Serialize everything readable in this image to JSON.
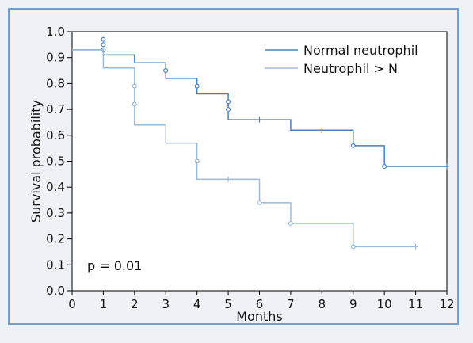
{
  "chart_data": {
    "type": "line",
    "subtype": "kaplan-meier",
    "title": "",
    "xlabel": "Months",
    "ylabel": "Survival probability",
    "xlim": [
      0,
      12
    ],
    "ylim": [
      0,
      1.0
    ],
    "x_ticks": [
      "0",
      "1",
      "2",
      "3",
      "4",
      "5",
      "6",
      "7",
      "8",
      "9",
      "10",
      "11",
      "12"
    ],
    "y_ticks": [
      "0.0",
      "0.1",
      "0.2",
      "0.3",
      "0.4",
      "0.5",
      "0.6",
      "0.7",
      "0.8",
      "0.9",
      "1.0"
    ],
    "grid": false,
    "legend_position": "top-right",
    "annotation": "p = 0.01",
    "series": [
      {
        "name": "Normal neutrophil",
        "color": "#4a7fb8",
        "steps": [
          [
            0,
            0.93
          ],
          [
            1,
            0.91
          ],
          [
            2,
            0.88
          ],
          [
            3,
            0.82
          ],
          [
            4,
            0.76
          ],
          [
            5,
            0.66
          ],
          [
            7,
            0.62
          ],
          [
            9,
            0.56
          ],
          [
            10,
            0.48
          ],
          [
            12,
            0.48
          ]
        ],
        "event_marks": [
          [
            1,
            0.97
          ],
          [
            1,
            0.95
          ],
          [
            1,
            0.93
          ],
          [
            3,
            0.85
          ],
          [
            4,
            0.79
          ],
          [
            5,
            0.73
          ],
          [
            5,
            0.7
          ],
          [
            9,
            0.56
          ],
          [
            10,
            0.48
          ]
        ],
        "censor_marks": [
          [
            6,
            0.66
          ],
          [
            8,
            0.62
          ],
          [
            12,
            0.48
          ]
        ]
      },
      {
        "name": "Neutrophil > N",
        "color": "#9dbad8",
        "steps": [
          [
            0,
            0.93
          ],
          [
            1,
            0.86
          ],
          [
            2,
            0.64
          ],
          [
            3,
            0.57
          ],
          [
            4,
            0.43
          ],
          [
            6,
            0.34
          ],
          [
            7,
            0.26
          ],
          [
            9,
            0.17
          ],
          [
            11,
            0.17
          ]
        ],
        "event_marks": [
          [
            2,
            0.79
          ],
          [
            2,
            0.72
          ],
          [
            4,
            0.5
          ],
          [
            6,
            0.34
          ],
          [
            7,
            0.26
          ],
          [
            9,
            0.17
          ]
        ],
        "censor_marks": [
          [
            5,
            0.43
          ],
          [
            11,
            0.17
          ]
        ]
      }
    ]
  }
}
